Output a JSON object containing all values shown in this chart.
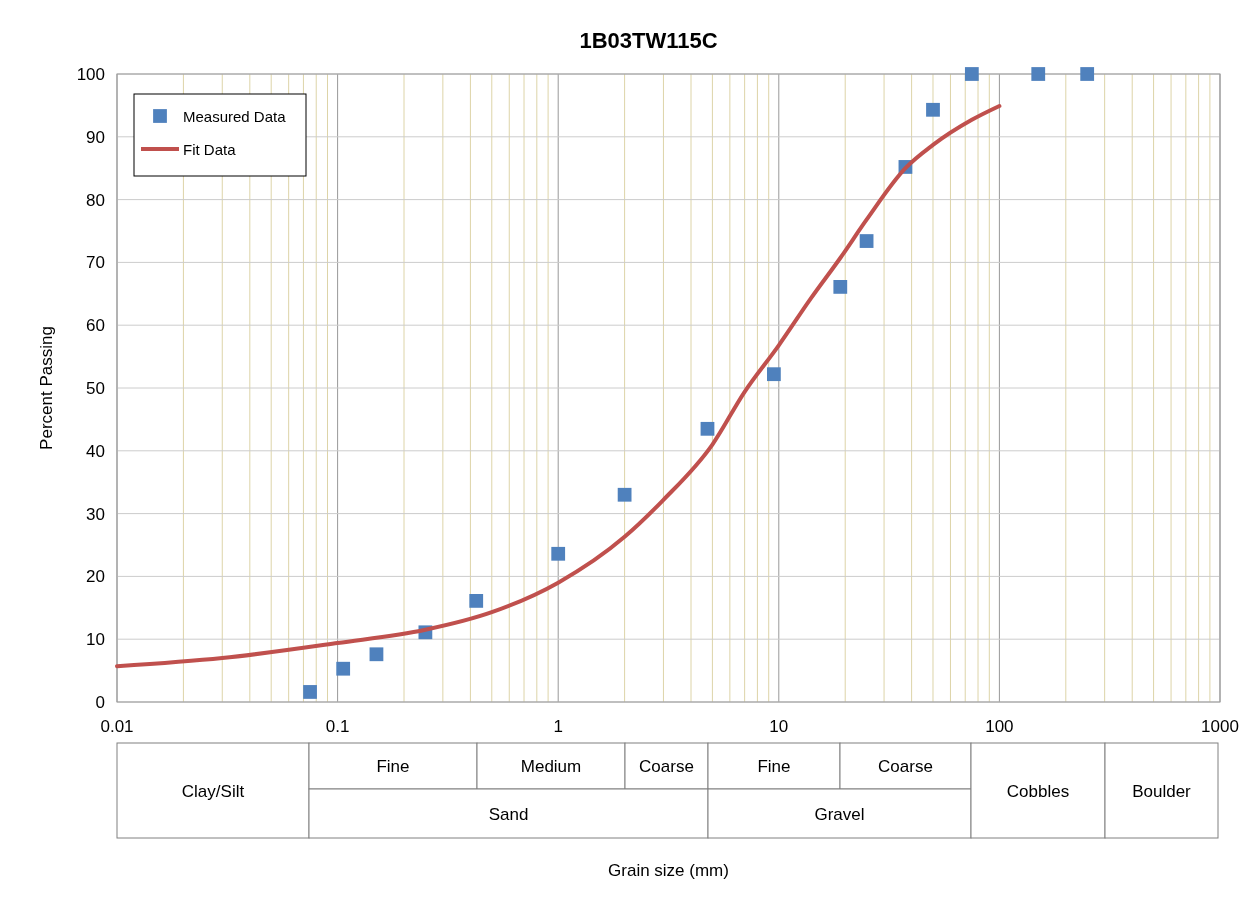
{
  "chart_data": {
    "type": "scatter",
    "title": "1B03TW115C",
    "ylabel": "Percent Passing",
    "log": "x",
    "grid": true,
    "legend": "top left",
    "xlim": [
      0.01,
      1000
    ],
    "xticks": [
      0.01,
      {
        "value": 0.02,
        "label": null
      },
      {
        "value": 0.03,
        "label": null
      },
      {
        "value": 0.04,
        "label": null
      },
      {
        "value": 0.05,
        "label": null
      },
      {
        "value": 0.06,
        "label": null
      },
      {
        "value": 0.07,
        "label": null
      },
      {
        "value": 0.08,
        "label": null
      },
      {
        "value": 0.09,
        "label": null
      },
      0.1,
      {
        "value": 0.2,
        "label": null
      },
      {
        "value": 0.3,
        "label": null
      },
      {
        "value": 0.4,
        "label": null
      },
      {
        "value": 0.5,
        "label": null
      },
      {
        "value": 0.6,
        "label": null
      },
      {
        "value": 0.7,
        "label": null
      },
      {
        "value": 0.8,
        "label": null
      },
      {
        "value": 0.9,
        "label": null
      },
      1,
      {
        "value": 2,
        "label": null
      },
      {
        "value": 3,
        "label": null
      },
      {
        "value": 4,
        "label": null
      },
      {
        "value": 5,
        "label": null
      },
      {
        "value": 6,
        "label": null
      },
      {
        "value": 7,
        "label": null
      },
      {
        "value": 8,
        "label": null
      },
      {
        "value": 9,
        "label": null
      },
      10,
      {
        "value": 20,
        "label": null
      },
      {
        "value": 30,
        "label": null
      },
      {
        "value": 40,
        "label": null
      },
      {
        "value": 50,
        "label": null
      },
      {
        "value": 60,
        "label": null
      },
      {
        "value": 70,
        "label": null
      },
      {
        "value": 80,
        "label": null
      },
      {
        "value": 90,
        "label": null
      },
      100,
      {
        "value": 200,
        "label": null
      },
      {
        "value": 300,
        "label": null
      },
      {
        "value": 400,
        "label": null
      },
      {
        "value": 500,
        "label": null
      },
      {
        "value": 600,
        "label": null
      },
      {
        "value": 700,
        "label": null
      },
      {
        "value": 800,
        "label": null
      },
      {
        "value": 900,
        "label": null
      },
      1000
    ],
    "ylim": [
      0,
      100
    ],
    "yticks": [
      0,
      10,
      20,
      30,
      40,
      50,
      60,
      70,
      80,
      90,
      100
    ],
    "series": [
      {
        "name": "Measured Data",
        "marker": "square",
        "color": "#4f81bd",
        "x": [
          0.075,
          0.106,
          0.15,
          0.25,
          0.425,
          1,
          2,
          4.75,
          9.5,
          19,
          25,
          37.5,
          50,
          75,
          150,
          250
        ],
        "values": [
          1.6,
          5.3,
          7.6,
          11.1,
          16.1,
          23.6,
          33,
          43.5,
          52.2,
          66.1,
          73.4,
          85.2,
          94.3,
          100,
          100,
          100
        ]
      },
      {
        "name": "Fit Data",
        "type": "line",
        "marker": "none",
        "color": "#c0504d",
        "x": [
          0.01,
          0.03,
          0.1,
          0.25,
          0.5,
          1,
          2,
          3,
          5,
          7,
          10,
          14,
          19,
          25,
          37.5,
          50,
          75,
          100
        ],
        "values": [
          5.7,
          7,
          9.4,
          11.5,
          14.3,
          19,
          26.3,
          32.2,
          41,
          49.4,
          56.8,
          64.3,
          70.7,
          76.8,
          85,
          88.7,
          92.7,
          94.9
        ]
      }
    ],
    "annotations": [
      "Clay/Silt",
      "Fine",
      "Medium",
      "Coarse",
      "Fine",
      "Coarse",
      "Sand",
      "Gravel",
      "Cobbles",
      "Boulder",
      "Grain size (mm)"
    ]
  }
}
